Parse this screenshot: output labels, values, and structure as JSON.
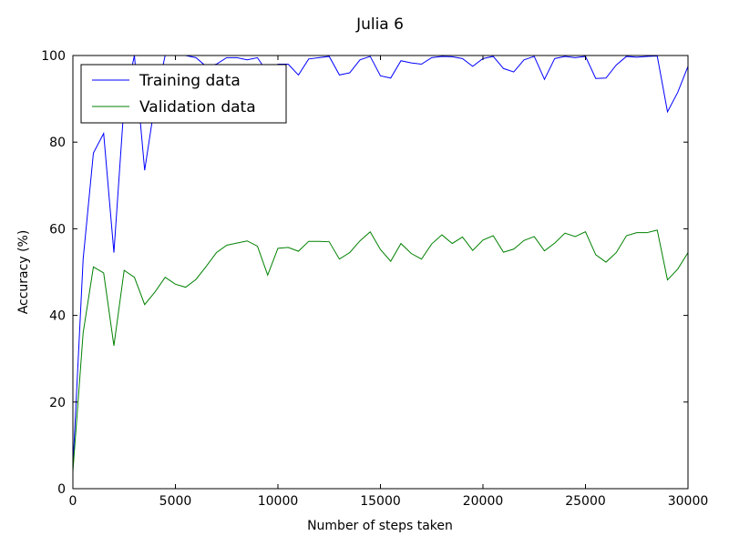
{
  "chart_data": {
    "type": "line",
    "title": "Julia 6",
    "xlabel": "Number of steps taken",
    "ylabel": "Accuracy (%)",
    "xlim": [
      0,
      30000
    ],
    "ylim": [
      0,
      100
    ],
    "xticks": [
      "0",
      "5000",
      "10000",
      "15000",
      "20000",
      "25000",
      "30000"
    ],
    "yticks": [
      "0",
      "20",
      "40",
      "60",
      "80",
      "100"
    ],
    "grid": false,
    "legend_position": "top-left",
    "series": [
      {
        "name": "Training data",
        "color": "#0000ff",
        "x": [
          0,
          500,
          1000,
          1500,
          2000,
          2500,
          3000,
          3500,
          4000,
          4500,
          5000,
          5500,
          6000,
          6500,
          7000,
          7500,
          8000,
          8500,
          9000,
          9500,
          10000,
          10500,
          11000,
          11500,
          12000,
          12500,
          13000,
          13500,
          14000,
          14500,
          15000,
          15500,
          16000,
          16500,
          17000,
          17500,
          18000,
          18500,
          19000,
          19500,
          20000,
          20500,
          21000,
          21500,
          22000,
          22500,
          23000,
          23500,
          24000,
          24500,
          25000,
          25500,
          26000,
          26500,
          27000,
          27500,
          28000,
          28500,
          29000,
          29500,
          30000
        ],
        "y": [
          5,
          53,
          77.5,
          82,
          54.5,
          89,
          100,
          73.5,
          89,
          100,
          100,
          100,
          99.5,
          97.5,
          98,
          99.5,
          99.5,
          99,
          99.5,
          96,
          98,
          98,
          95.5,
          99.2,
          99.5,
          99.8,
          95.5,
          96,
          99,
          99.8,
          95.3,
          94.8,
          98.8,
          98.3,
          98,
          99.5,
          99.8,
          99.7,
          99.3,
          97.5,
          99.3,
          99.8,
          97,
          96.2,
          99,
          99.8,
          94.5,
          99.3,
          99.8,
          99.5,
          99.8,
          94.7,
          94.8,
          97.8,
          99.8,
          99.6,
          99.8,
          99.9,
          87,
          91.5,
          97.5
        ]
      },
      {
        "name": "Validation data",
        "color": "#008000",
        "x": [
          0,
          500,
          1000,
          1500,
          2000,
          2500,
          3000,
          3500,
          4000,
          4500,
          5000,
          5500,
          6000,
          6500,
          7000,
          7500,
          8000,
          8500,
          9000,
          9500,
          10000,
          10500,
          11000,
          11500,
          12000,
          12500,
          13000,
          13500,
          14000,
          14500,
          15000,
          15500,
          16000,
          16500,
          17000,
          17500,
          18000,
          18500,
          19000,
          19500,
          20000,
          20500,
          21000,
          21500,
          22000,
          22500,
          23000,
          23500,
          24000,
          24500,
          25000,
          25500,
          26000,
          26500,
          27000,
          27500,
          28000,
          28500,
          29000,
          29500,
          30000
        ],
        "y": [
          4,
          36,
          51.2,
          49.8,
          33,
          50.4,
          48.8,
          42.5,
          45.4,
          48.8,
          47.2,
          46.5,
          48.3,
          51.3,
          54.5,
          56.2,
          56.7,
          57.2,
          56,
          49.3,
          55.5,
          55.7,
          54.8,
          57.1,
          57.1,
          57,
          53,
          54.5,
          57.2,
          59.3,
          55.2,
          52.5,
          56.6,
          54.3,
          53,
          56.5,
          58.6,
          56.6,
          58.1,
          55,
          57.4,
          58.4,
          54.6,
          55.3,
          57.3,
          58.2,
          54.9,
          56.7,
          59,
          58.2,
          59.3,
          54,
          52.3,
          54.5,
          58.4,
          59.1,
          59.1,
          59.7,
          48.2,
          50.7,
          54.5
        ]
      }
    ]
  }
}
